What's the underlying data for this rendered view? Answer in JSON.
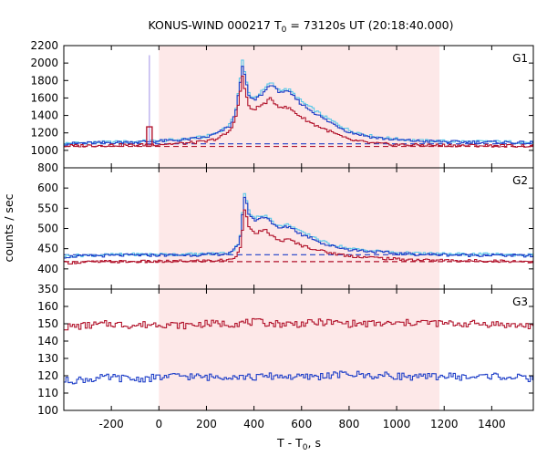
{
  "chart_data": {
    "type": "line",
    "title": {
      "prefix": "KONUS-WIND 000217 T",
      "subscript": "0",
      "suffix": " = 73120s UT (20:18:40.000)"
    },
    "xlabel": {
      "prefix": "T - T",
      "subscript": "0",
      "suffix": ", s"
    },
    "ylabel": "counts / sec",
    "xlim": [
      -400,
      1575
    ],
    "xticks": [
      -200,
      0,
      200,
      400,
      600,
      800,
      1000,
      1200,
      1400
    ],
    "highlight_interval": [
      0,
      1180
    ],
    "colors": {
      "highlight": "#fde8e8",
      "light_blue": "#5bc8e8",
      "blue": "#1f3fc8",
      "red": "#b2142c",
      "violet": "#9f8fe8"
    },
    "panels": [
      {
        "label": "G1",
        "ylim": [
          800,
          2200
        ],
        "yticks": [
          800,
          1000,
          1200,
          1400,
          1600,
          1800,
          2000,
          2200
        ],
        "background_levels": [
          1075,
          1045
        ],
        "precursor": {
          "x": -40,
          "peak_violet": 2090,
          "peak_red": 1270
        },
        "series": [
          {
            "color_key": "light_blue",
            "x": [
              -400,
              -300,
              -200,
              -100,
              0,
              100,
              200,
              250,
              300,
              320,
              340,
              350,
              360,
              380,
              400,
              440,
              470,
              500,
              550,
              600,
              650,
              700,
              800,
              900,
              1000,
              1100,
              1200,
              1300,
              1400,
              1500,
              1575
            ],
            "y": [
              1080,
              1090,
              1095,
              1100,
              1110,
              1125,
              1160,
              1210,
              1300,
              1420,
              1760,
              2050,
              1900,
              1640,
              1600,
              1690,
              1780,
              1700,
              1690,
              1560,
              1470,
              1380,
              1230,
              1160,
              1130,
              1110,
              1105,
              1100,
              1100,
              1095,
              1090
            ]
          },
          {
            "color_key": "blue",
            "x": [
              -400,
              -300,
              -200,
              -100,
              0,
              100,
              200,
              250,
              300,
              320,
              340,
              350,
              360,
              380,
              400,
              440,
              470,
              500,
              550,
              600,
              650,
              700,
              800,
              900,
              1000,
              1100,
              1200,
              1300,
              1400,
              1500,
              1575
            ],
            "y": [
              1075,
              1085,
              1090,
              1095,
              1105,
              1120,
              1150,
              1200,
              1280,
              1400,
              1720,
              2000,
              1860,
              1610,
              1570,
              1660,
              1760,
              1680,
              1660,
              1530,
              1440,
              1350,
              1210,
              1150,
              1120,
              1105,
              1100,
              1095,
              1095,
              1090,
              1085
            ]
          },
          {
            "color_key": "red",
            "x": [
              -400,
              -300,
              -200,
              -100,
              0,
              100,
              200,
              250,
              300,
              320,
              340,
              350,
              360,
              380,
              400,
              440,
              470,
              500,
              550,
              600,
              650,
              700,
              800,
              900,
              1000,
              1100,
              1200,
              1300,
              1400,
              1500,
              1575
            ],
            "y": [
              1050,
              1055,
              1060,
              1060,
              1070,
              1080,
              1100,
              1140,
              1220,
              1350,
              1600,
              1870,
              1720,
              1480,
              1470,
              1530,
              1590,
              1510,
              1480,
              1380,
              1300,
              1240,
              1120,
              1080,
              1065,
              1060,
              1058,
              1055,
              1055,
              1052,
              1050
            ]
          }
        ]
      },
      {
        "label": "G2",
        "ylim": [
          350,
          650
        ],
        "yticks": [
          350,
          400,
          450,
          500,
          550,
          600
        ],
        "background_levels": [
          435,
          418
        ],
        "series": [
          {
            "color_key": "light_blue",
            "x": [
              -400,
              -300,
              -200,
              -100,
              0,
              100,
              200,
              300,
              320,
              340,
              350,
              360,
              380,
              400,
              450,
              500,
              550,
              600,
              650,
              700,
              800,
              900,
              1000,
              1100,
              1200,
              1300,
              1400,
              1500,
              1575
            ],
            "y": [
              432,
              434,
              435,
              436,
              436,
              436,
              437,
              440,
              450,
              470,
              530,
              590,
              540,
              525,
              535,
              505,
              510,
              490,
              480,
              465,
              450,
              445,
              440,
              438,
              437,
              436,
              436,
              435,
              434
            ]
          },
          {
            "color_key": "blue",
            "x": [
              -400,
              -300,
              -200,
              -100,
              0,
              100,
              200,
              300,
              320,
              340,
              350,
              360,
              380,
              400,
              450,
              500,
              550,
              600,
              650,
              700,
              800,
              900,
              1000,
              1100,
              1200,
              1300,
              1400,
              1500,
              1575
            ],
            "y": [
              430,
              432,
              433,
              434,
              434,
              434,
              435,
              438,
              448,
              468,
              525,
              580,
              535,
              520,
              530,
              500,
              505,
              485,
              475,
              460,
              448,
              443,
              438,
              436,
              435,
              434,
              434,
              433,
              432
            ]
          },
          {
            "color_key": "red",
            "x": [
              -400,
              -300,
              -200,
              -100,
              0,
              100,
              200,
              300,
              320,
              340,
              350,
              360,
              380,
              400,
              450,
              500,
              550,
              600,
              650,
              700,
              800,
              900,
              1000,
              1100,
              1200,
              1300,
              1400,
              1500,
              1575
            ],
            "y": [
              415,
              417,
              418,
              418,
              418,
              419,
              420,
              422,
              430,
              445,
              490,
              550,
              500,
              488,
              495,
              470,
              472,
              458,
              450,
              442,
              432,
              428,
              424,
              422,
              421,
              420,
              420,
              419,
              418
            ]
          }
        ]
      },
      {
        "label": "G3",
        "ylim": [
          100,
          170
        ],
        "yticks": [
          100,
          110,
          120,
          130,
          140,
          150,
          160
        ],
        "series": [
          {
            "color_key": "red",
            "x": [
              -400,
              -300,
              -200,
              -100,
              0,
              100,
              200,
              300,
              400,
              500,
              600,
              700,
              800,
              900,
              1000,
              1100,
              1200,
              1300,
              1400,
              1500,
              1575
            ],
            "y": [
              148,
              149,
              150,
              149,
              150,
              149,
              150,
              150,
              151,
              150,
              150,
              151,
              150,
              150,
              150,
              151,
              150,
              150,
              150,
              149,
              149
            ]
          },
          {
            "color_key": "blue",
            "x": [
              -400,
              -300,
              -200,
              -100,
              0,
              100,
              200,
              300,
              400,
              500,
              600,
              700,
              800,
              900,
              1000,
              1100,
              1200,
              1300,
              1400,
              1500,
              1575
            ],
            "y": [
              117,
              118,
              119,
              118,
              119,
              120,
              119,
              120,
              119,
              120,
              119,
              120,
              121,
              120,
              120,
              119,
              120,
              119,
              120,
              119,
              118
            ]
          }
        ]
      }
    ]
  }
}
